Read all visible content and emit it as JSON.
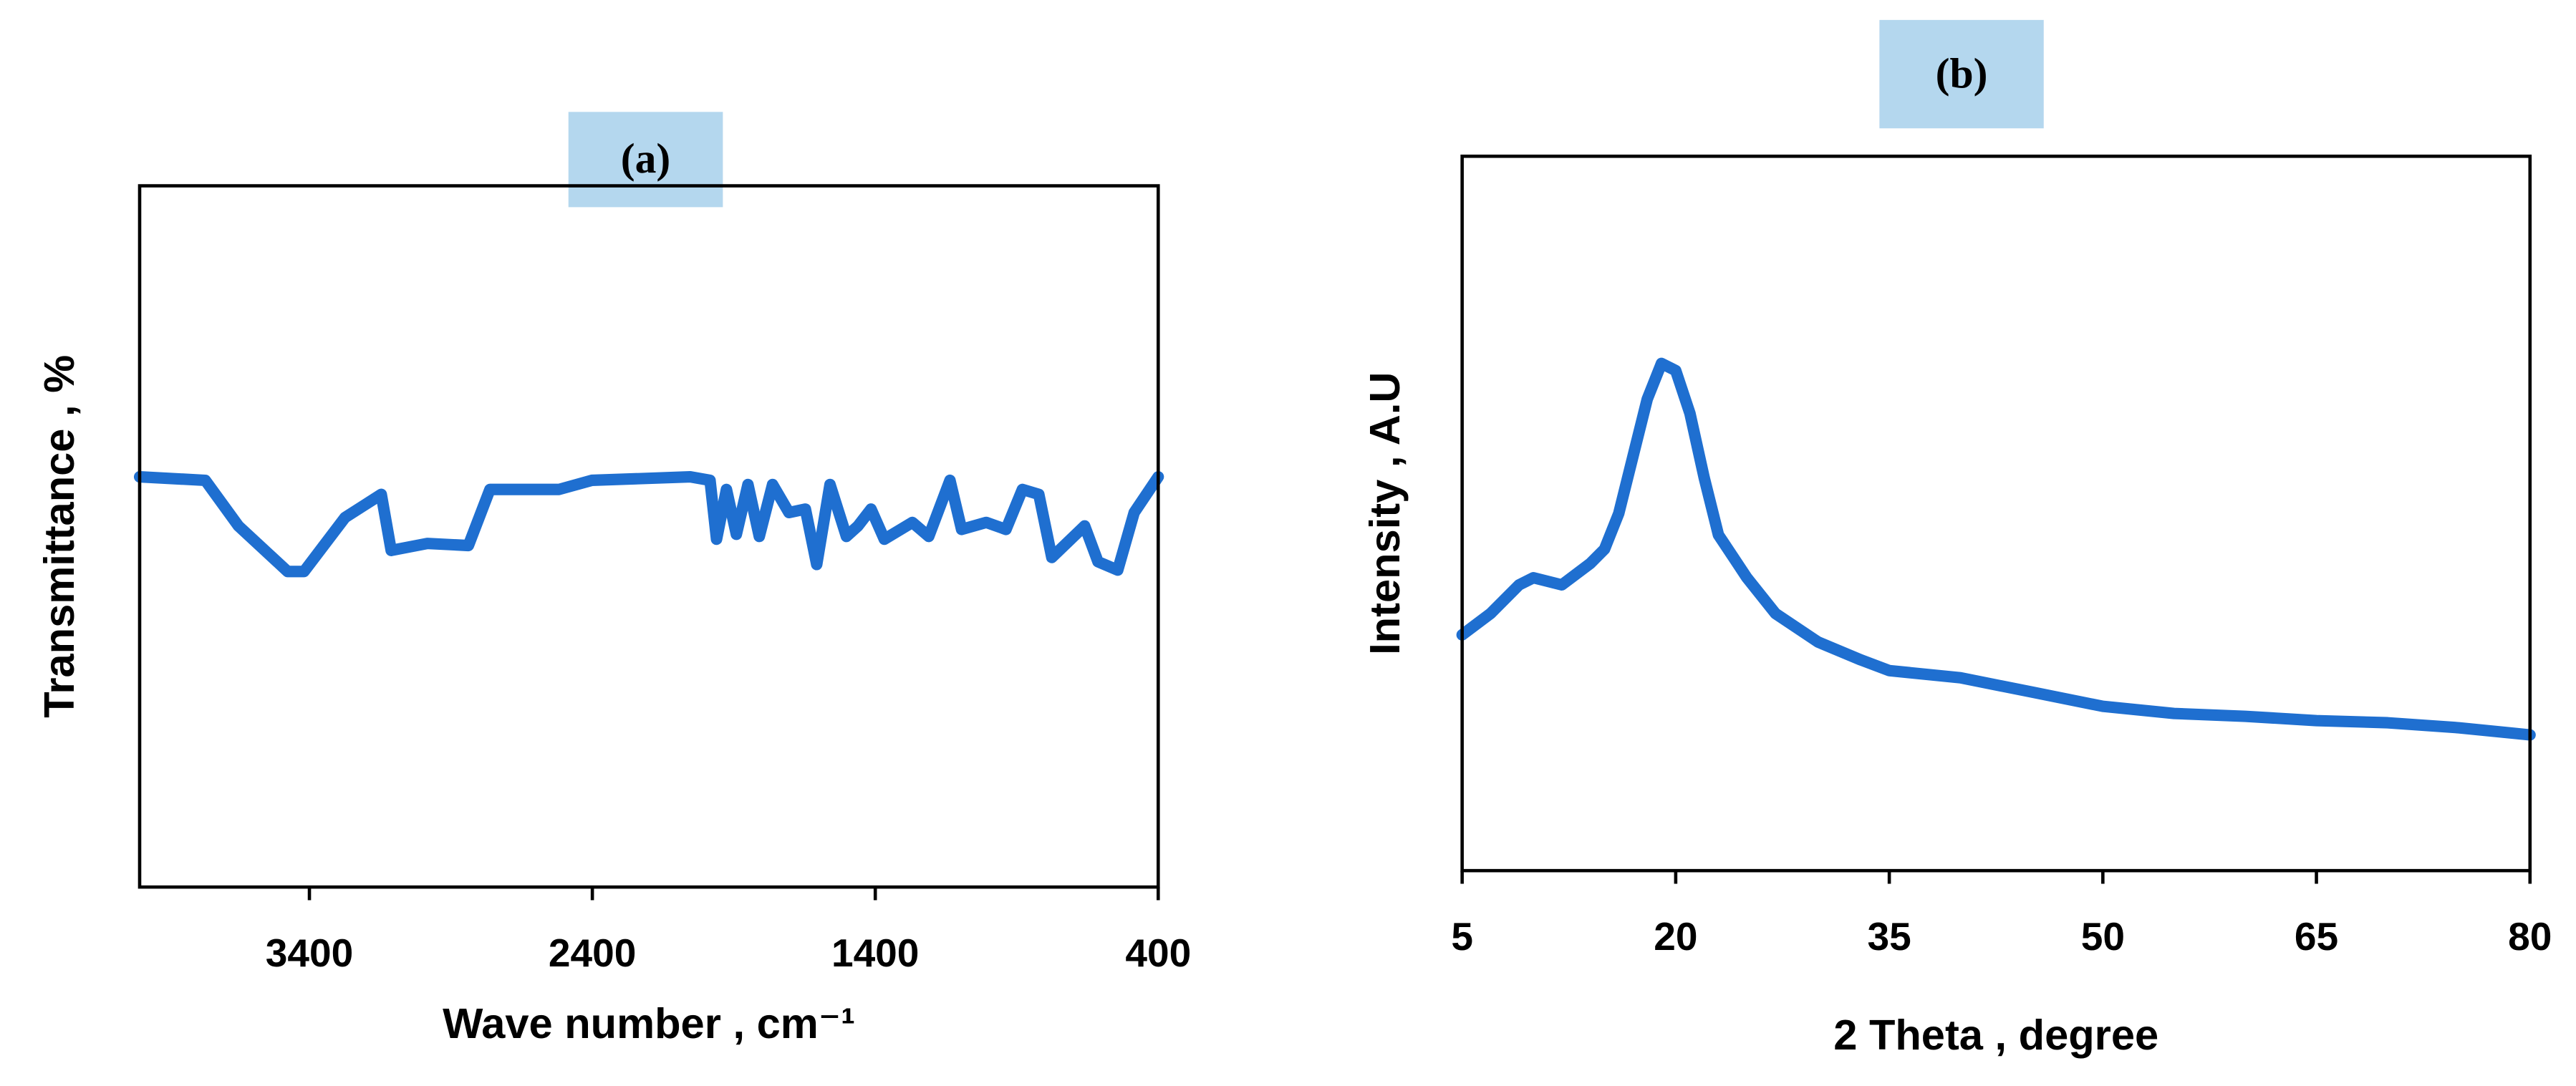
{
  "chart_data": [
    {
      "type": "line",
      "title": "(a)",
      "x_label": "Wave number , cm⁻¹",
      "y_label": "Transmittance , %",
      "x": [
        4000,
        3768,
        3651,
        3477,
        3419,
        3274,
        3146,
        3111,
        2983,
        2838,
        2762,
        2518,
        2402,
        2054,
        1984,
        1961,
        1926,
        1891,
        1850,
        1810,
        1763,
        1705,
        1647,
        1607,
        1560,
        1502,
        1461,
        1415,
        1368,
        1269,
        1211,
        1136,
        1095,
        1008,
        938,
        880,
        822,
        776,
        660,
        613,
        543,
        485,
        400
      ],
      "series": [
        {
          "color": "#1f6fd0",
          "values": [
            58.5,
            58,
            51.5,
            45,
            45,
            52.7,
            56,
            48,
            49,
            48.7,
            56.7,
            56.7,
            58,
            58.5,
            58,
            49.6,
            56.7,
            50.3,
            57.4,
            50,
            57.4,
            53.4,
            53.9,
            46,
            57.4,
            50,
            51.5,
            53.9,
            49.6,
            52,
            50,
            58,
            51,
            52,
            51,
            56.7,
            56,
            47,
            51.5,
            46.4,
            45.2,
            53.4,
            58.5
          ]
        }
      ],
      "xlim": [
        4000,
        400
      ],
      "ylim": [
        0,
        100
      ],
      "xticks": [
        3400,
        2400,
        1400,
        400
      ]
    },
    {
      "type": "line",
      "title": "(b)",
      "x_label": "2 Theta , degree",
      "y_label": "Intensity , A.U",
      "x": [
        5,
        7,
        9,
        10,
        12,
        14,
        15,
        16,
        17,
        18,
        19,
        20,
        21,
        22,
        23,
        24,
        25,
        27,
        30,
        33,
        35,
        40,
        45,
        50,
        55,
        60,
        65,
        70,
        75,
        80
      ],
      "series": [
        {
          "color": "#1f6fd0",
          "values": [
            33,
            36,
            40,
            41,
            40,
            43,
            45,
            50,
            58,
            66,
            71,
            70,
            64,
            55,
            47,
            44,
            41,
            36,
            32,
            29.5,
            28,
            27,
            25,
            23,
            22,
            21.6,
            21,
            20.7,
            20,
            19
          ]
        }
      ],
      "xlim": [
        5,
        80
      ],
      "ylim": [
        0,
        100
      ],
      "xticks": [
        5,
        20,
        35,
        50,
        65,
        80
      ]
    }
  ]
}
